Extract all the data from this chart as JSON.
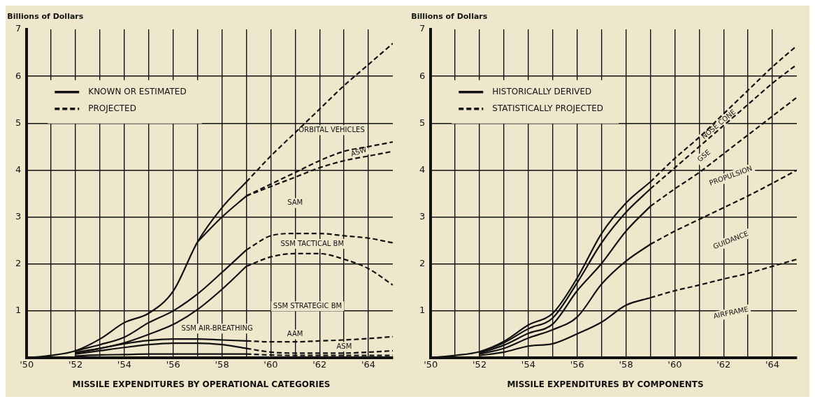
{
  "chart_data": [
    {
      "type": "line",
      "title": "MISSILE EXPENDITURES BY OPERATIONAL CATEGORIES",
      "ylabel": "Billions of Dollars",
      "xlim": [
        1950,
        1965
      ],
      "ylim": [
        0,
        7
      ],
      "xticks": [
        {
          "value": 1950,
          "label": "'50"
        },
        {
          "value": 1951,
          "label": null
        },
        {
          "value": 1952,
          "label": "'52"
        },
        {
          "value": 1953,
          "label": null
        },
        {
          "value": 1954,
          "label": "'54"
        },
        {
          "value": 1955,
          "label": null
        },
        {
          "value": 1956,
          "label": "'56"
        },
        {
          "value": 1957,
          "label": null
        },
        {
          "value": 1958,
          "label": "'58"
        },
        {
          "value": 1959,
          "label": null
        },
        {
          "value": 1960,
          "label": "'60"
        },
        {
          "value": 1961,
          "label": null
        },
        {
          "value": 1962,
          "label": "'62"
        },
        {
          "value": 1963,
          "label": null
        },
        {
          "value": 1964,
          "label": "'64"
        }
      ],
      "yticks": [
        1,
        2,
        3,
        4,
        5,
        6,
        7
      ],
      "grid": true,
      "legend": "top left",
      "series": [
        {
          "name": "KNOWN OR ESTIMATED",
          "color": "#111111",
          "line_style": "solid",
          "x": [
            1950,
            1951,
            1952,
            1953,
            1954,
            1955,
            1956,
            1957,
            1958,
            1959
          ],
          "values": [
            0,
            0.05,
            0.15,
            0.4,
            0.75,
            0.95,
            1.42,
            2.47,
            3.2,
            3.75
          ]
        },
        {
          "name": "PROJECTED",
          "color": "#111111",
          "line_style": "dashed",
          "x": [
            1959,
            1960,
            1961,
            1962,
            1963,
            1964,
            1965
          ],
          "values": [
            3.75,
            4.3,
            4.8,
            5.3,
            5.8,
            6.25,
            6.7
          ]
        },
        {
          "color": "#111111",
          "line_style": "solid",
          "x": [
            1957,
            1958,
            1959
          ],
          "values": [
            2.47,
            3.0,
            3.45
          ]
        },
        {
          "color": "#111111",
          "line_style": "dashed",
          "x": [
            1959,
            1960,
            1961,
            1962,
            1963,
            1964,
            1965
          ],
          "values": [
            3.45,
            3.7,
            3.95,
            4.2,
            4.4,
            4.5,
            4.6
          ]
        },
        {
          "color": "#111111",
          "line_style": "dashed",
          "x": [
            1959,
            1960,
            1961,
            1962,
            1963,
            1964,
            1965
          ],
          "values": [
            3.45,
            3.65,
            3.85,
            4.05,
            4.2,
            4.3,
            4.4
          ]
        },
        {
          "color": "#111111",
          "line_style": "solid",
          "x": [
            1952,
            1953,
            1954,
            1955,
            1956,
            1957,
            1958,
            1959
          ],
          "values": [
            0.15,
            0.28,
            0.44,
            0.75,
            1.0,
            1.36,
            1.82,
            2.3
          ]
        },
        {
          "color": "#111111",
          "line_style": "dashed",
          "x": [
            1959,
            1960,
            1961,
            1962,
            1963,
            1964,
            1965
          ],
          "values": [
            2.3,
            2.6,
            2.65,
            2.65,
            2.6,
            2.55,
            2.45
          ]
        },
        {
          "color": "#111111",
          "line_style": "solid",
          "x": [
            1952,
            1953,
            1954,
            1955,
            1956,
            1957,
            1958,
            1959
          ],
          "values": [
            0.12,
            0.2,
            0.32,
            0.5,
            0.71,
            1.03,
            1.46,
            1.95
          ]
        },
        {
          "color": "#111111",
          "line_style": "dashed",
          "x": [
            1959,
            1960,
            1961,
            1962,
            1963,
            1964,
            1965
          ],
          "values": [
            1.95,
            2.15,
            2.22,
            2.22,
            2.1,
            1.9,
            1.55
          ]
        },
        {
          "color": "#111111",
          "line_style": "solid",
          "x": [
            1952,
            1953,
            1954,
            1955,
            1956,
            1957,
            1958,
            1959
          ],
          "values": [
            0.1,
            0.2,
            0.3,
            0.37,
            0.4,
            0.4,
            0.38,
            0.36
          ]
        },
        {
          "color": "#111111",
          "line_style": "dashed",
          "x": [
            1959,
            1960,
            1961,
            1962,
            1963,
            1964,
            1965
          ],
          "values": [
            0.36,
            0.34,
            0.34,
            0.36,
            0.38,
            0.41,
            0.45
          ]
        },
        {
          "color": "#111111",
          "line_style": "solid",
          "x": [
            1952,
            1953,
            1954,
            1955,
            1956,
            1957,
            1958,
            1959
          ],
          "values": [
            0.08,
            0.15,
            0.22,
            0.28,
            0.31,
            0.31,
            0.28,
            0.2
          ]
        },
        {
          "color": "#111111",
          "line_style": "dashed",
          "x": [
            1959,
            1960,
            1961,
            1962,
            1963,
            1964,
            1965
          ],
          "values": [
            0.2,
            0.12,
            0.1,
            0.1,
            0.1,
            0.12,
            0.15
          ]
        },
        {
          "color": "#111111",
          "line_style": "solid",
          "x": [
            1952,
            1953,
            1954,
            1955,
            1956,
            1957,
            1958,
            1959
          ],
          "values": [
            0.04,
            0.06,
            0.07,
            0.08,
            0.08,
            0.08,
            0.08,
            0.08
          ]
        },
        {
          "color": "#111111",
          "line_style": "dashed",
          "x": [
            1959,
            1960,
            1961,
            1962,
            1963,
            1964,
            1965
          ],
          "values": [
            0.08,
            0.06,
            0.05,
            0.05,
            0.05,
            0.05,
            0.05
          ]
        }
      ],
      "annotations": [
        "ORBITAL VEHICLES",
        "ASW",
        "SAM",
        "SSM TACTICAL BM",
        "SSM STRATEGIC BM",
        "SSM AIR-BREATHING",
        "AAM",
        "ASM"
      ]
    },
    {
      "type": "line",
      "title": "MISSILE EXPENDITURES BY COMPONENTS",
      "ylabel": "Billions of Dollars",
      "xlim": [
        1950,
        1965
      ],
      "ylim": [
        0,
        7
      ],
      "xticks": [
        {
          "value": 1950,
          "label": "'50"
        },
        {
          "value": 1951,
          "label": null
        },
        {
          "value": 1952,
          "label": "'52"
        },
        {
          "value": 1953,
          "label": null
        },
        {
          "value": 1954,
          "label": "'54"
        },
        {
          "value": 1955,
          "label": null
        },
        {
          "value": 1956,
          "label": "'56"
        },
        {
          "value": 1957,
          "label": null
        },
        {
          "value": 1958,
          "label": "'58"
        },
        {
          "value": 1959,
          "label": null
        },
        {
          "value": 1960,
          "label": "'60"
        },
        {
          "value": 1961,
          "label": null
        },
        {
          "value": 1962,
          "label": "'62"
        },
        {
          "value": 1963,
          "label": null
        },
        {
          "value": 1964,
          "label": "'64"
        }
      ],
      "yticks": [
        1,
        2,
        3,
        4,
        5,
        6,
        7
      ],
      "grid": true,
      "legend": "top left",
      "series": [
        {
          "name": "HISTORICALLY DERIVED",
          "color": "#111111",
          "line_style": "solid",
          "x": [
            1950,
            1951,
            1952,
            1953,
            1954,
            1955,
            1956,
            1957,
            1958,
            1959
          ],
          "values": [
            0,
            0.05,
            0.13,
            0.35,
            0.7,
            0.95,
            1.7,
            2.65,
            3.3,
            3.75
          ]
        },
        {
          "name": "STATISTICALLY PROJECTED",
          "color": "#111111",
          "line_style": "dashed",
          "x": [
            1959,
            1960,
            1961,
            1962,
            1963,
            1964,
            1965
          ],
          "values": [
            3.75,
            4.25,
            4.7,
            5.2,
            5.7,
            6.2,
            6.65
          ]
        },
        {
          "color": "#111111",
          "line_style": "solid",
          "x": [
            1952,
            1953,
            1954,
            1955,
            1956,
            1957,
            1958,
            1959
          ],
          "values": [
            0.12,
            0.32,
            0.62,
            0.85,
            1.6,
            2.45,
            3.1,
            3.6
          ]
        },
        {
          "color": "#111111",
          "line_style": "dashed",
          "x": [
            1959,
            1960,
            1961,
            1962,
            1963,
            1964,
            1965
          ],
          "values": [
            3.6,
            4.05,
            4.5,
            4.95,
            5.4,
            5.85,
            6.25
          ]
        },
        {
          "color": "#111111",
          "line_style": "solid",
          "x": [
            1952,
            1953,
            1954,
            1955,
            1956,
            1957,
            1958,
            1959
          ],
          "values": [
            0.1,
            0.27,
            0.52,
            0.72,
            1.43,
            2.01,
            2.7,
            3.23
          ]
        },
        {
          "color": "#111111",
          "line_style": "dashed",
          "x": [
            1959,
            1960,
            1961,
            1962,
            1963,
            1964,
            1965
          ],
          "values": [
            3.23,
            3.6,
            3.95,
            4.35,
            4.75,
            5.15,
            5.55
          ]
        },
        {
          "color": "#111111",
          "line_style": "solid",
          "x": [
            1952,
            1953,
            1954,
            1955,
            1956,
            1957,
            1958,
            1959
          ],
          "values": [
            0.08,
            0.2,
            0.42,
            0.6,
            0.87,
            1.57,
            2.06,
            2.42
          ]
        },
        {
          "color": "#111111",
          "line_style": "dashed",
          "x": [
            1959,
            1960,
            1961,
            1962,
            1963,
            1964,
            1965
          ],
          "values": [
            2.42,
            2.7,
            2.95,
            3.2,
            3.45,
            3.72,
            4.0
          ]
        },
        {
          "color": "#111111",
          "line_style": "solid",
          "x": [
            1952,
            1953,
            1954,
            1955,
            1956,
            1957,
            1958,
            1959
          ],
          "values": [
            0.05,
            0.12,
            0.25,
            0.3,
            0.51,
            0.76,
            1.12,
            1.28
          ]
        },
        {
          "color": "#111111",
          "line_style": "dashed",
          "x": [
            1959,
            1960,
            1961,
            1962,
            1963,
            1964,
            1965
          ],
          "values": [
            1.28,
            1.43,
            1.55,
            1.68,
            1.8,
            1.95,
            2.1
          ]
        }
      ],
      "annotations": [
        "NOSE CONE",
        "GSE",
        "PROPULSION",
        "GUIDANCE",
        "AIRFRAME"
      ]
    }
  ]
}
